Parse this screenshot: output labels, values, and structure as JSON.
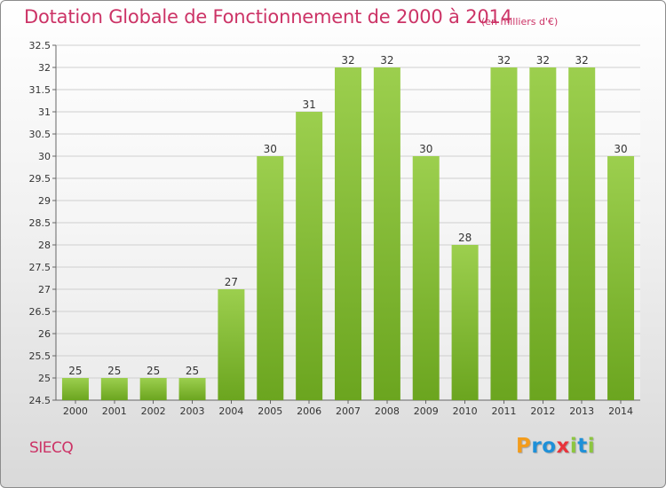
{
  "chart_data": {
    "type": "bar",
    "title": "Dotation Globale de Fonctionnement de 2000 à 2014",
    "subtitle": "(en milliers d'€)",
    "categories": [
      "2000",
      "2001",
      "2002",
      "2003",
      "2004",
      "2005",
      "2006",
      "2007",
      "2008",
      "2009",
      "2010",
      "2011",
      "2012",
      "2013",
      "2014"
    ],
    "values": [
      25,
      25,
      25,
      25,
      27,
      30,
      31,
      32,
      32,
      30,
      28,
      32,
      32,
      32,
      30
    ],
    "data_labels": [
      "25",
      "25",
      "25",
      "25",
      "27",
      "30",
      "31",
      "32",
      "32",
      "30",
      "28",
      "32",
      "32",
      "32",
      "30"
    ],
    "ylim": [
      24.5,
      32.5
    ],
    "y_ticks": [
      "24.5",
      "25",
      "25.5",
      "26",
      "26.5",
      "27",
      "27.5",
      "28",
      "28.5",
      "29",
      "29.5",
      "30",
      "30.5",
      "31",
      "31.5",
      "32",
      "32.5"
    ],
    "grid": true,
    "bar_color_light": "#9ccf4e",
    "bar_color_dark": "#6ba51f",
    "legend": "none"
  },
  "footer": {
    "commune": "SIECQ",
    "logo_letters": [
      "P",
      "r",
      "o",
      "x",
      "i",
      "t",
      "i"
    ],
    "logo_colors": [
      "#f39c1c",
      "#1e90d8",
      "#1e90d8",
      "#e8343c",
      "#8cc63f",
      "#1e90d8",
      "#8cc63f"
    ]
  }
}
